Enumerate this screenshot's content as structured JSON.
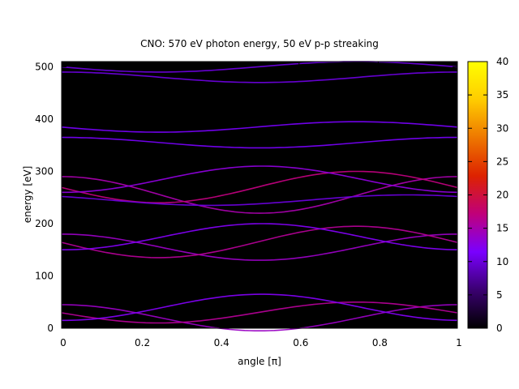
{
  "chart_data": {
    "type": "heatmap",
    "title": "CNO: 570 eV photon energy, 50 eV p-p streaking",
    "xlabel": "angle [π]",
    "ylabel": "energy [eV]",
    "xlim": [
      0,
      1
    ],
    "ylim": [
      0,
      510
    ],
    "x_ticks": [
      "0",
      "0.2",
      "0.4",
      "0.6",
      "0.8",
      "1"
    ],
    "x_tick_values": [
      0,
      0.2,
      0.4,
      0.6,
      0.8,
      1
    ],
    "y_ticks": [
      "0",
      "100",
      "200",
      "300",
      "400",
      "500"
    ],
    "y_tick_values": [
      0,
      100,
      200,
      300,
      400,
      500
    ],
    "colorbar": {
      "range": [
        0,
        40
      ],
      "ticks": [
        "0",
        "5",
        "10",
        "15",
        "20",
        "25",
        "30",
        "35",
        "40"
      ],
      "tick_values": [
        0,
        5,
        10,
        15,
        20,
        25,
        30,
        35,
        40
      ],
      "colormap": [
        "#000000",
        "#3a0070",
        "#7a00ff",
        "#c0007a",
        "#dd2200",
        "#ee7700",
        "#ffcc00",
        "#ffff00"
      ]
    },
    "background": "#000000",
    "streak_bands": [
      {
        "center": 20,
        "amplitude": 25,
        "phase": 0.0,
        "intensity": 14
      },
      {
        "center": 30,
        "amplitude": 20,
        "phase": 1.6,
        "intensity": 16
      },
      {
        "center": 40,
        "amplitude": 25,
        "phase": 3.1,
        "intensity": 12
      },
      {
        "center": 155,
        "amplitude": 25,
        "phase": 0.0,
        "intensity": 14
      },
      {
        "center": 165,
        "amplitude": 30,
        "phase": 1.6,
        "intensity": 16
      },
      {
        "center": 175,
        "amplitude": 25,
        "phase": 3.1,
        "intensity": 12
      },
      {
        "center": 255,
        "amplitude": 35,
        "phase": 0.0,
        "intensity": 15
      },
      {
        "center": 270,
        "amplitude": 30,
        "phase": 1.6,
        "intensity": 17
      },
      {
        "center": 285,
        "amplitude": 25,
        "phase": 3.1,
        "intensity": 13
      },
      {
        "center": 245,
        "amplitude": 10,
        "phase": 0.8,
        "intensity": 10
      },
      {
        "center": 355,
        "amplitude": 10,
        "phase": 0.0,
        "intensity": 11
      },
      {
        "center": 385,
        "amplitude": 10,
        "phase": 1.6,
        "intensity": 11
      },
      {
        "center": 480,
        "amplitude": 10,
        "phase": 0.0,
        "intensity": 10
      },
      {
        "center": 500,
        "amplitude": 10,
        "phase": 1.6,
        "intensity": 10
      }
    ]
  }
}
